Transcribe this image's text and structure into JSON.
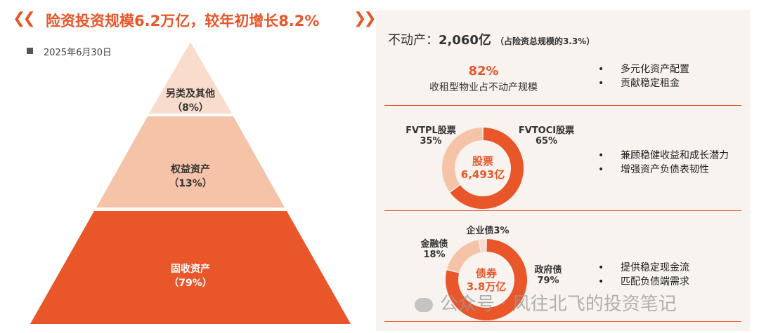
{
  "header": {
    "title": "险资投资规模6.2万亿，较年初增长8.2%",
    "left_chevrons": "❮❮",
    "right_chevrons": "❯❯"
  },
  "legend": {
    "date_label": "2025年6月30日"
  },
  "colors": {
    "accent": "#e8562a",
    "mid": "#f5c3a7",
    "light": "#f9dccb",
    "panel_bg": "#f8f3ef"
  },
  "chart_data": [
    {
      "type": "pyramid",
      "tiers": [
        {
          "label": "另类及其他",
          "value_label": "（8%）",
          "value": 8
        },
        {
          "label": "权益资产",
          "value_label": "（13%）",
          "value": 13
        },
        {
          "label": "固收资产",
          "value_label": "（79%）",
          "value": 79
        }
      ]
    },
    {
      "type": "pie",
      "center": {
        "line1": "股票",
        "line2": "6,493亿"
      },
      "slices": [
        {
          "label": "FVTOCI股票",
          "value_label": "65%",
          "value": 65
        },
        {
          "label": "FVTPL股票",
          "value_label": "35%",
          "value": 35
        }
      ]
    },
    {
      "type": "pie",
      "center": {
        "line1": "债券",
        "line2": "3.8万亿"
      },
      "slices": [
        {
          "label": "政府债",
          "value_label": "79%",
          "value": 79
        },
        {
          "label": "金融债",
          "value_label": "18%",
          "value": 18
        },
        {
          "label": "企业债3%",
          "value_label": "",
          "value": 3
        }
      ]
    }
  ],
  "real_estate": {
    "heading_prefix": "不动产：",
    "heading_value": "2,060亿",
    "heading_note": "（占险资总规模的3.3%）",
    "stat_value": "82%",
    "stat_label": "收租型物业占不动产规模",
    "bullets": [
      "多元化资产配置",
      "贡献稳定租金"
    ]
  },
  "equity": {
    "bullets": [
      "兼顾稳健收益和成长潜力",
      "增强资产负债表韧性"
    ]
  },
  "bond": {
    "bullets": [
      "提供稳定现金流",
      "匹配负债端需求"
    ]
  },
  "watermark": {
    "text": "公众号 · 风往北飞的投资笔记"
  }
}
